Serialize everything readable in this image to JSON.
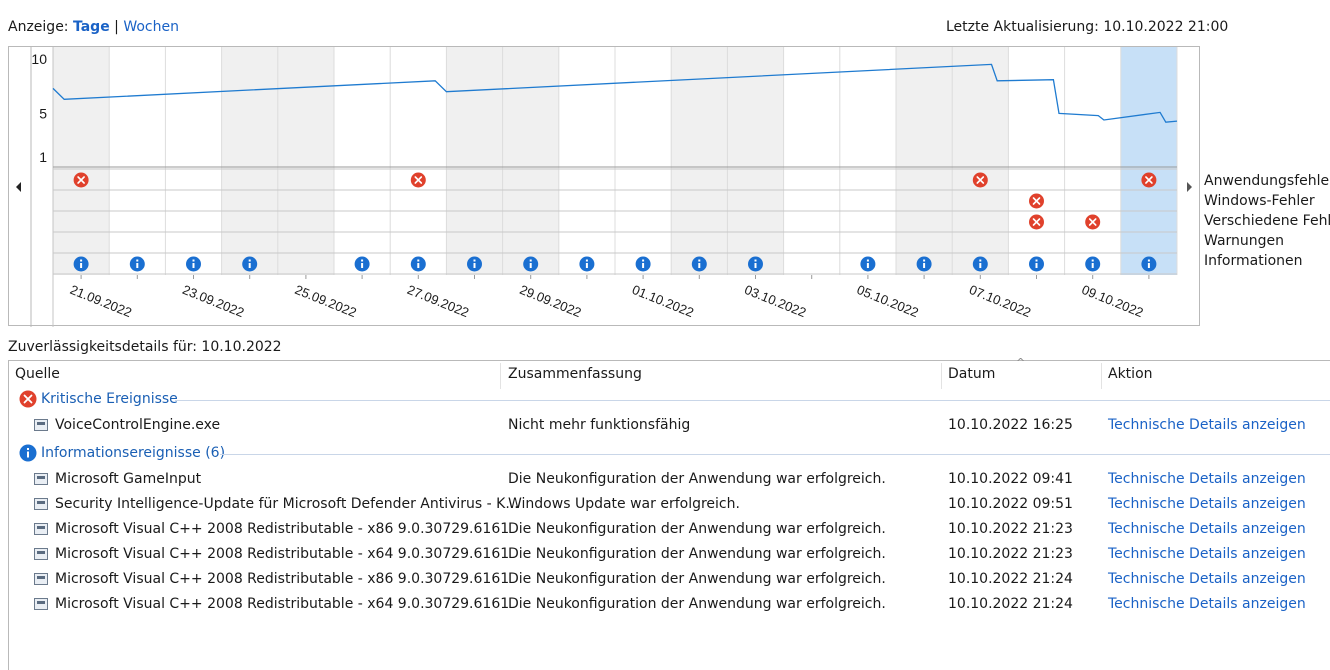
{
  "topbar": {
    "view_label": "Anzeige:",
    "view_days": "Tage",
    "separator": "|",
    "view_weeks": "Wochen",
    "last_update": "Letzte Aktualisierung: 10.10.2022 21:00"
  },
  "chart_data": {
    "type": "line",
    "y_ticks": [
      "10",
      "5",
      "1"
    ],
    "ylim": [
      1,
      10
    ],
    "days": 20,
    "selected_day_index": 19,
    "x_labels": [
      "21.09.2022",
      "23.09.2022",
      "25.09.2022",
      "27.09.2022",
      "29.09.2022",
      "01.10.2022",
      "03.10.2022",
      "05.10.2022",
      "07.10.2022",
      "09.10.2022"
    ],
    "stability_index": [
      {
        "x": 0,
        "y": 7.3
      },
      {
        "x": 0.2,
        "y": 6.3
      },
      {
        "x": 6.8,
        "y": 8.0
      },
      {
        "x": 7.0,
        "y": 7.0
      },
      {
        "x": 16.7,
        "y": 9.5
      },
      {
        "x": 16.8,
        "y": 8.0
      },
      {
        "x": 17.8,
        "y": 8.1
      },
      {
        "x": 17.9,
        "y": 5.0
      },
      {
        "x": 18.6,
        "y": 4.8
      },
      {
        "x": 18.7,
        "y": 4.4
      },
      {
        "x": 19.7,
        "y": 5.1
      },
      {
        "x": 19.8,
        "y": 4.2
      },
      {
        "x": 20,
        "y": 4.3
      }
    ],
    "event_rows": [
      "Anwendungsfehler",
      "Windows-Fehler",
      "Verschiedene Fehle",
      "Warnungen",
      "Informationen"
    ],
    "events": {
      "app_errors": [
        0,
        6,
        16,
        19
      ],
      "windows_errors": [
        17
      ],
      "misc_errors": [
        17,
        18
      ],
      "warnings": [],
      "info": [
        0,
        1,
        2,
        3,
        5,
        6,
        7,
        8,
        9,
        10,
        11,
        12,
        14,
        15,
        16,
        17,
        18,
        19
      ]
    }
  },
  "legend": [
    "Anwendungsfehler",
    "Windows-Fehler",
    "Verschiedene Fehle",
    "Warnungen",
    "Informationen"
  ],
  "details": {
    "title": "Zuverlässigkeitsdetails für: 10.10.2022",
    "columns": {
      "source": "Quelle",
      "summary": "Zusammenfassung",
      "date": "Datum",
      "action": "Aktion"
    },
    "critical_group": "Kritische Ereignisse",
    "critical_rows": [
      {
        "source": "VoiceControlEngine.exe",
        "summary": "Nicht mehr funktionsfähig",
        "date": "10.10.2022 16:25",
        "action": "Technische Details anzeigen"
      }
    ],
    "info_group": "Informationsereignisse (6)",
    "info_rows": [
      {
        "source": "Microsoft GameInput",
        "summary": "Die Neukonfiguration der Anwendung war erfolgreich.",
        "date": "10.10.2022 09:41",
        "action": "Technische Details anzeigen"
      },
      {
        "source": "Security Intelligence-Update für Microsoft Defender Antivirus - K...",
        "summary": "Windows Update war erfolgreich.",
        "date": "10.10.2022 09:51",
        "action": "Technische Details anzeigen"
      },
      {
        "source": "Microsoft Visual C++ 2008 Redistributable - x86 9.0.30729.6161",
        "summary": "Die Neukonfiguration der Anwendung war erfolgreich.",
        "date": "10.10.2022 21:23",
        "action": "Technische Details anzeigen"
      },
      {
        "source": "Microsoft Visual C++ 2008 Redistributable - x64 9.0.30729.6161",
        "summary": "Die Neukonfiguration der Anwendung war erfolgreich.",
        "date": "10.10.2022 21:23",
        "action": "Technische Details anzeigen"
      },
      {
        "source": "Microsoft Visual C++ 2008 Redistributable - x86 9.0.30729.6161",
        "summary": "Die Neukonfiguration der Anwendung war erfolgreich.",
        "date": "10.10.2022 21:24",
        "action": "Technische Details anzeigen"
      },
      {
        "source": "Microsoft Visual C++ 2008 Redistributable - x64 9.0.30729.6161",
        "summary": "Die Neukonfiguration der Anwendung war erfolgreich.",
        "date": "10.10.2022 21:24",
        "action": "Technische Details anzeigen"
      }
    ]
  },
  "colors": {
    "accent": "#1a62c6",
    "line": "#1f7bd0",
    "error": "#e0412c",
    "info": "#1a6fd1",
    "selected": "#c7e0f7",
    "alt_col": "#f0f0f0"
  }
}
